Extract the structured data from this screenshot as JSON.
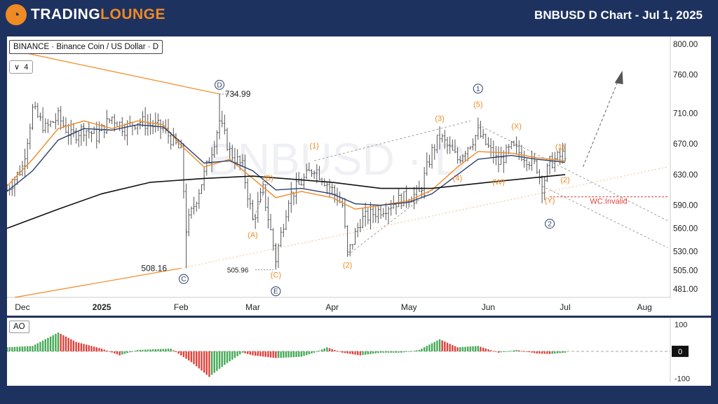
{
  "header": {
    "logo_text_a": "TRADING",
    "logo_text_b": "LOUNGE",
    "title": "BNBUSD D Chart - Jul 1, 2025"
  },
  "symbol_label": "BINANCE · Binance Coin / US Dollar · D",
  "interval_label": "4",
  "watermark": "BNBUSD · D",
  "colors": {
    "background": "#1e3260",
    "accent": "#f08a24",
    "ema_fast": "#f08a24",
    "ema_slow": "#2b3f6b",
    "ma_long": "#111111",
    "up_bar": "#44aa55",
    "down_bar": "#e0413b",
    "invalid": "#e0413b"
  },
  "chart_data": [
    {
      "type": "ohlc",
      "title": "BNBUSD D",
      "y_ticks": [
        800,
        760,
        710,
        670,
        630,
        590,
        560,
        530,
        505,
        481
      ],
      "ylim": [
        470,
        810
      ],
      "x_ticks": [
        "Dec",
        "2025",
        "Feb",
        "Mar",
        "Apr",
        "May",
        "Jun",
        "Jul",
        "Aug"
      ],
      "x_tick_dates": [
        "2024-12-01",
        "2025-01-01",
        "2025-02-01",
        "2025-03-01",
        "2025-04-01",
        "2025-05-01",
        "2025-06-01",
        "2025-07-01",
        "2025-08-01"
      ],
      "date_range": [
        "2024-11-25",
        "2025-08-10"
      ],
      "series": [
        {
          "kind": "ema",
          "color": "#f08a24",
          "points": [
            [
              "2024-11-25",
              615
            ],
            [
              "2024-12-05",
              650
            ],
            [
              "2024-12-15",
              690
            ],
            [
              "2024-12-25",
              700
            ],
            [
              "2025-01-05",
              690
            ],
            [
              "2025-01-15",
              700
            ],
            [
              "2025-01-25",
              695
            ],
            [
              "2025-02-01",
              668
            ],
            [
              "2025-02-10",
              640
            ],
            [
              "2025-02-20",
              650
            ],
            [
              "2025-03-01",
              625
            ],
            [
              "2025-03-10",
              600
            ],
            [
              "2025-03-20",
              608
            ],
            [
              "2025-04-01",
              600
            ],
            [
              "2025-04-10",
              585
            ],
            [
              "2025-04-20",
              590
            ],
            [
              "2025-05-01",
              596
            ],
            [
              "2025-05-10",
              610
            ],
            [
              "2025-05-20",
              640
            ],
            [
              "2025-05-28",
              660
            ],
            [
              "2025-06-10",
              658
            ],
            [
              "2025-06-20",
              652
            ],
            [
              "2025-07-01",
              648
            ]
          ]
        },
        {
          "kind": "ema",
          "color": "#2b3f6b",
          "points": [
            [
              "2024-11-25",
              608
            ],
            [
              "2024-12-05",
              635
            ],
            [
              "2024-12-15",
              675
            ],
            [
              "2024-12-25",
              690
            ],
            [
              "2025-01-05",
              688
            ],
            [
              "2025-01-15",
              695
            ],
            [
              "2025-01-25",
              692
            ],
            [
              "2025-02-01",
              672
            ],
            [
              "2025-02-10",
              645
            ],
            [
              "2025-02-20",
              648
            ],
            [
              "2025-03-01",
              635
            ],
            [
              "2025-03-10",
              610
            ],
            [
              "2025-03-20",
              612
            ],
            [
              "2025-04-01",
              605
            ],
            [
              "2025-04-10",
              592
            ],
            [
              "2025-04-20",
              590
            ],
            [
              "2025-05-01",
              594
            ],
            [
              "2025-05-10",
              605
            ],
            [
              "2025-05-20",
              630
            ],
            [
              "2025-05-28",
              650
            ],
            [
              "2025-06-10",
              655
            ],
            [
              "2025-06-20",
              650
            ],
            [
              "2025-07-01",
              646
            ]
          ]
        },
        {
          "kind": "ma",
          "color": "#111111",
          "points": [
            [
              "2024-11-25",
              560
            ],
            [
              "2024-12-15",
              585
            ],
            [
              "2025-01-01",
              605
            ],
            [
              "2025-01-20",
              620
            ],
            [
              "2025-02-10",
              625
            ],
            [
              "2025-03-01",
              628
            ],
            [
              "2025-04-01",
              620
            ],
            [
              "2025-04-20",
              612
            ],
            [
              "2025-05-10",
              612
            ],
            [
              "2025-06-01",
              620
            ],
            [
              "2025-07-01",
              630
            ]
          ]
        }
      ],
      "ohlc_path": [
        [
          "2024-11-25",
          610
        ],
        [
          "2024-12-01",
          640
        ],
        [
          "2024-12-05",
          715
        ],
        [
          "2024-12-10",
          690
        ],
        [
          "2024-12-15",
          705
        ],
        [
          "2024-12-20",
          680
        ],
        [
          "2024-12-25",
          690
        ],
        [
          "2024-12-30",
          680
        ],
        [
          "2025-01-05",
          705
        ],
        [
          "2025-01-10",
          690
        ],
        [
          "2025-01-15",
          700
        ],
        [
          "2025-01-20",
          695
        ],
        [
          "2025-01-25",
          690
        ],
        [
          "2025-02-01",
          660
        ],
        [
          "2025-02-03",
          560
        ],
        [
          "2025-02-07",
          600
        ],
        [
          "2025-02-12",
          650
        ],
        [
          "2025-02-16",
          700
        ],
        [
          "2025-02-20",
          660
        ],
        [
          "2025-02-25",
          640
        ],
        [
          "2025-03-01",
          570
        ],
        [
          "2025-03-05",
          610
        ],
        [
          "2025-03-10",
          520
        ],
        [
          "2025-03-15",
          600
        ],
        [
          "2025-03-20",
          620
        ],
        [
          "2025-03-25",
          640
        ],
        [
          "2025-04-01",
          610
        ],
        [
          "2025-04-05",
          590
        ],
        [
          "2025-04-07",
          525
        ],
        [
          "2025-04-12",
          570
        ],
        [
          "2025-04-20",
          585
        ],
        [
          "2025-04-28",
          598
        ],
        [
          "2025-05-05",
          605
        ],
        [
          "2025-05-10",
          660
        ],
        [
          "2025-05-13",
          680
        ],
        [
          "2025-05-20",
          650
        ],
        [
          "2025-05-28",
          685
        ],
        [
          "2025-06-05",
          645
        ],
        [
          "2025-06-10",
          665
        ],
        [
          "2025-06-15",
          655
        ],
        [
          "2025-06-20",
          640
        ],
        [
          "2025-06-22",
          615
        ],
        [
          "2025-06-25",
          645
        ],
        [
          "2025-07-01",
          658
        ]
      ],
      "labels": [
        {
          "text": "734.99",
          "date": "2025-02-16",
          "price": 735,
          "kind": "price"
        },
        {
          "text": "508.16",
          "date": "2025-01-28",
          "price": 508,
          "kind": "price"
        },
        {
          "text": "505.96",
          "date": "2025-03-05",
          "price": 506,
          "kind": "price"
        },
        {
          "text": "D",
          "date": "2025-02-16",
          "price": 747,
          "kind": "circle"
        },
        {
          "text": "C",
          "date": "2025-02-02",
          "price": 494,
          "kind": "circle"
        },
        {
          "text": "E",
          "date": "2025-03-10",
          "price": 478,
          "kind": "circle"
        },
        {
          "text": "1",
          "date": "2025-05-28",
          "price": 742,
          "kind": "circle"
        },
        {
          "text": "2",
          "date": "2025-06-25",
          "price": 566,
          "kind": "circle"
        },
        {
          "text": "(A)",
          "date": "2025-03-01",
          "price": 548,
          "kind": "wave"
        },
        {
          "text": "(B)",
          "date": "2025-03-07",
          "price": 622,
          "kind": "wave"
        },
        {
          "text": "(C)",
          "date": "2025-03-10",
          "price": 496,
          "kind": "wave"
        },
        {
          "text": "(1)",
          "date": "2025-03-25",
          "price": 664,
          "kind": "wave"
        },
        {
          "text": "(2)",
          "date": "2025-04-07",
          "price": 509,
          "kind": "wave"
        },
        {
          "text": "(3)",
          "date": "2025-05-13",
          "price": 700,
          "kind": "wave"
        },
        {
          "text": "(4)",
          "date": "2025-05-20",
          "price": 622,
          "kind": "wave"
        },
        {
          "text": "(5)",
          "date": "2025-05-28",
          "price": 718,
          "kind": "wave"
        },
        {
          "text": "(W)",
          "date": "2025-06-05",
          "price": 617,
          "kind": "wave"
        },
        {
          "text": "(X)",
          "date": "2025-06-12",
          "price": 690,
          "kind": "wave"
        },
        {
          "text": "(Y)",
          "date": "2025-06-25",
          "price": 593,
          "kind": "wave"
        },
        {
          "text": "(1)",
          "date": "2025-06-29",
          "price": 663,
          "kind": "wave"
        },
        {
          "text": "(2)",
          "date": "2025-07-01",
          "price": 620,
          "kind": "wave"
        },
        {
          "text": "WC.Invalid",
          "date": "2025-07-18",
          "price": 592,
          "kind": "invalid"
        }
      ],
      "invalid_level": 601
    },
    {
      "type": "bar",
      "title": "AO",
      "y_ticks": [
        100,
        0,
        -100
      ],
      "ylim": [
        -115,
        125
      ],
      "date_range": [
        "2024-11-25",
        "2025-08-10"
      ],
      "hist_path": [
        [
          "2024-11-25",
          15
        ],
        [
          "2024-12-05",
          20
        ],
        [
          "2024-12-15",
          70
        ],
        [
          "2024-12-22",
          35
        ],
        [
          "2025-01-01",
          10
        ],
        [
          "2025-01-08",
          -15
        ],
        [
          "2025-01-15",
          5
        ],
        [
          "2025-01-22",
          8
        ],
        [
          "2025-01-28",
          10
        ],
        [
          "2025-02-05",
          -40
        ],
        [
          "2025-02-12",
          -95
        ],
        [
          "2025-02-18",
          -50
        ],
        [
          "2025-02-25",
          -5
        ],
        [
          "2025-03-01",
          -15
        ],
        [
          "2025-03-10",
          -25
        ],
        [
          "2025-03-20",
          -20
        ],
        [
          "2025-03-25",
          -5
        ],
        [
          "2025-03-30",
          15
        ],
        [
          "2025-04-05",
          -5
        ],
        [
          "2025-04-12",
          -15
        ],
        [
          "2025-04-20",
          -5
        ],
        [
          "2025-04-28",
          -5
        ],
        [
          "2025-05-05",
          5
        ],
        [
          "2025-05-13",
          45
        ],
        [
          "2025-05-20",
          15
        ],
        [
          "2025-05-28",
          20
        ],
        [
          "2025-06-05",
          -5
        ],
        [
          "2025-06-12",
          5
        ],
        [
          "2025-06-20",
          -8
        ],
        [
          "2025-06-25",
          -10
        ],
        [
          "2025-07-01",
          -5
        ]
      ]
    }
  ]
}
